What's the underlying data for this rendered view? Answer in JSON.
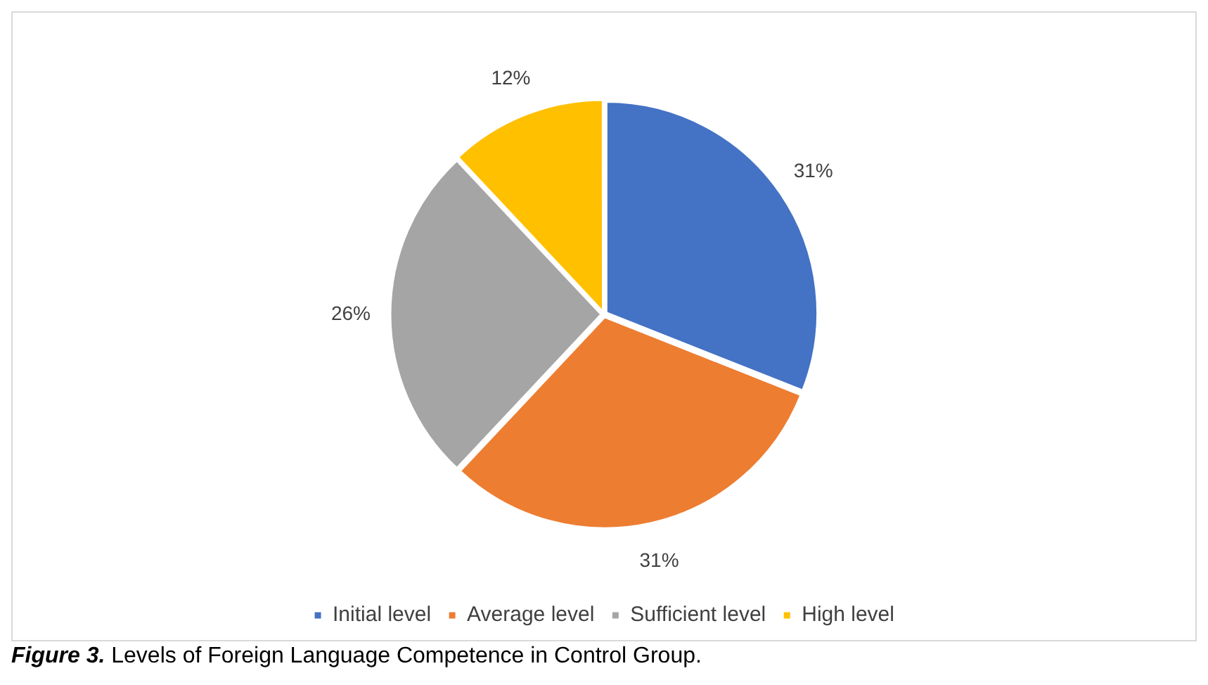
{
  "chart_data": {
    "type": "pie",
    "categories": [
      "Initial level",
      "Average level",
      "Sufficient level",
      "High level"
    ],
    "values": [
      31,
      31,
      26,
      12
    ],
    "value_labels": [
      "31%",
      "31%",
      "26%",
      "12%"
    ],
    "colors": [
      "#4472c4",
      "#ed7d31",
      "#a5a5a5",
      "#ffc000"
    ],
    "legend": "bottom",
    "annotations": [
      "Figure 3.",
      "Levels of Foreign Language Competence in Control Group."
    ]
  }
}
